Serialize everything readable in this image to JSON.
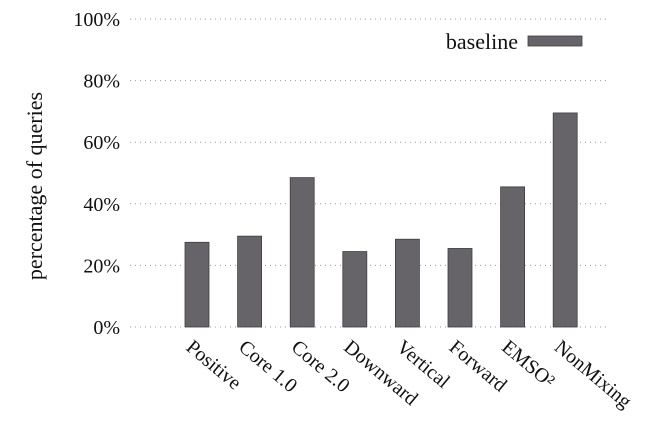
{
  "chart_data": {
    "type": "bar",
    "categories": [
      "Positive",
      "Core 1.0",
      "Core 2.0",
      "Downward",
      "Vertical",
      "Forward",
      "EMSO²",
      "NonMixing"
    ],
    "series": [
      {
        "name": "baseline",
        "values": [
          27.5,
          29.5,
          48.5,
          24.5,
          28.5,
          25.5,
          45.5,
          69.5
        ]
      }
    ],
    "ylabel": "percentage of queries",
    "ylim": [
      0,
      100
    ],
    "yticks": [
      "0%",
      "20%",
      "40%",
      "60%",
      "80%",
      "100%"
    ],
    "grid": true,
    "legend_position": "top-right",
    "colors": {
      "bar": "#666469",
      "bar_edge": "#3e3e3e",
      "grid": "#9a9a9a"
    }
  }
}
